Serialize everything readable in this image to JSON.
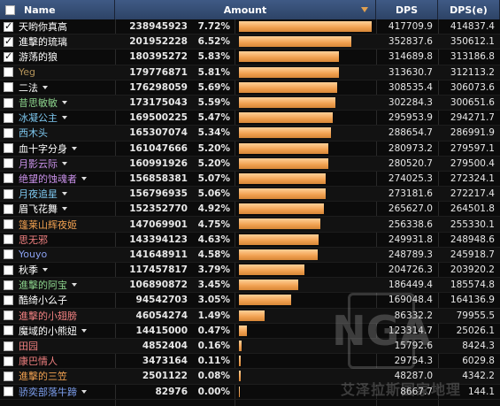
{
  "header": {
    "name_label": "Name",
    "amount_label": "Amount",
    "dps_label": "DPS",
    "dpse_label": "DPS(e)"
  },
  "max_amount": 238945923,
  "rows": [
    {
      "name": "天哟你真高",
      "color": "#ffffff",
      "checked": true,
      "caret": false,
      "amount": "238945923",
      "pct": "7.72%",
      "fraction": 1.0,
      "dps": "417709.9",
      "dpse": "414837.4"
    },
    {
      "name": "進擊的琉璃",
      "color": "#ffffff",
      "checked": true,
      "caret": false,
      "amount": "201952228",
      "pct": "6.52%",
      "fraction": 0.845,
      "dps": "352837.6",
      "dpse": "350612.1"
    },
    {
      "name": "游荡的狼",
      "color": "#ffffff",
      "checked": true,
      "caret": false,
      "amount": "180395272",
      "pct": "5.83%",
      "fraction": 0.755,
      "dps": "314689.8",
      "dpse": "313186.8"
    },
    {
      "name": "Yeg",
      "color": "#b5945a",
      "checked": false,
      "caret": false,
      "amount": "179776871",
      "pct": "5.81%",
      "fraction": 0.752,
      "dps": "313630.7",
      "dpse": "312113.2"
    },
    {
      "name": "二法",
      "color": "#ffffff",
      "checked": false,
      "caret": true,
      "amount": "176298059",
      "pct": "5.69%",
      "fraction": 0.738,
      "dps": "308535.4",
      "dpse": "306073.6"
    },
    {
      "name": "昔思敏敏",
      "color": "#8ad08a",
      "checked": false,
      "caret": true,
      "amount": "173175043",
      "pct": "5.59%",
      "fraction": 0.725,
      "dps": "302284.3",
      "dpse": "300651.6"
    },
    {
      "name": "冰凝公主",
      "color": "#7ec8f0",
      "checked": false,
      "caret": true,
      "amount": "169500225",
      "pct": "5.47%",
      "fraction": 0.709,
      "dps": "295953.9",
      "dpse": "294271.7"
    },
    {
      "name": "西木头",
      "color": "#7ec8f0",
      "checked": false,
      "caret": false,
      "amount": "165307074",
      "pct": "5.34%",
      "fraction": 0.692,
      "dps": "288654.7",
      "dpse": "286991.9"
    },
    {
      "name": "血十字分身",
      "color": "#ffffff",
      "checked": false,
      "caret": true,
      "amount": "161047666",
      "pct": "5.20%",
      "fraction": 0.674,
      "dps": "280973.2",
      "dpse": "279597.1"
    },
    {
      "name": "月影云际",
      "color": "#c890e8",
      "checked": false,
      "caret": true,
      "amount": "160991926",
      "pct": "5.20%",
      "fraction": 0.674,
      "dps": "280520.7",
      "dpse": "279500.4"
    },
    {
      "name": "绝望的蚀魂者",
      "color": "#c890e8",
      "checked": false,
      "caret": true,
      "amount": "156858381",
      "pct": "5.07%",
      "fraction": 0.656,
      "dps": "274025.3",
      "dpse": "272324.1"
    },
    {
      "name": "月夜追星",
      "color": "#7ec8f0",
      "checked": false,
      "caret": true,
      "amount": "156796935",
      "pct": "5.06%",
      "fraction": 0.656,
      "dps": "273181.6",
      "dpse": "272217.4"
    },
    {
      "name": "眉飞花舞",
      "color": "#ffffff",
      "checked": false,
      "caret": true,
      "amount": "152352770",
      "pct": "4.92%",
      "fraction": 0.638,
      "dps": "265627.0",
      "dpse": "264501.8"
    },
    {
      "name": "篷莱山辉夜姬",
      "color": "#f0a050",
      "checked": false,
      "caret": false,
      "amount": "147069901",
      "pct": "4.75%",
      "fraction": 0.615,
      "dps": "256338.6",
      "dpse": "255330.1"
    },
    {
      "name": "思无邪",
      "color": "#f08080",
      "checked": false,
      "caret": false,
      "amount": "143394123",
      "pct": "4.63%",
      "fraction": 0.6,
      "dps": "249931.8",
      "dpse": "248948.6"
    },
    {
      "name": "Youyo",
      "color": "#8aa0f0",
      "checked": false,
      "caret": false,
      "amount": "141648911",
      "pct": "4.58%",
      "fraction": 0.593,
      "dps": "248789.3",
      "dpse": "245918.7"
    },
    {
      "name": "秋季",
      "color": "#ffffff",
      "checked": false,
      "caret": true,
      "amount": "117457817",
      "pct": "3.79%",
      "fraction": 0.492,
      "dps": "204726.3",
      "dpse": "203920.2"
    },
    {
      "name": "進擊的阿宝",
      "color": "#8ad08a",
      "checked": false,
      "caret": true,
      "amount": "106890872",
      "pct": "3.45%",
      "fraction": 0.447,
      "dps": "186449.4",
      "dpse": "185574.8"
    },
    {
      "name": "酷绮小么子",
      "color": "#ffffff",
      "checked": false,
      "caret": false,
      "amount": "94542703",
      "pct": "3.05%",
      "fraction": 0.396,
      "dps": "169048.4",
      "dpse": "164136.9"
    },
    {
      "name": "進擊的小翅膀",
      "color": "#f08080",
      "checked": false,
      "caret": false,
      "amount": "46054274",
      "pct": "1.49%",
      "fraction": 0.193,
      "dps": "86332.2",
      "dpse": "79955.5"
    },
    {
      "name": "魔域的小熊妞",
      "color": "#ffffff",
      "checked": false,
      "caret": true,
      "amount": "14415000",
      "pct": "0.47%",
      "fraction": 0.06,
      "dps": "123314.7",
      "dpse": "25026.1"
    },
    {
      "name": "田园",
      "color": "#f08080",
      "checked": false,
      "caret": false,
      "amount": "4852404",
      "pct": "0.16%",
      "fraction": 0.02,
      "dps": "15792.6",
      "dpse": "8424.3"
    },
    {
      "name": "康巴情人",
      "color": "#f08080",
      "checked": false,
      "caret": false,
      "amount": "3473164",
      "pct": "0.11%",
      "fraction": 0.0145,
      "dps": "29754.3",
      "dpse": "6029.8"
    },
    {
      "name": "進擊的三笠",
      "color": "#f0a050",
      "checked": false,
      "caret": false,
      "amount": "2501122",
      "pct": "0.08%",
      "fraction": 0.0105,
      "dps": "48287.0",
      "dpse": "4342.2"
    },
    {
      "name": "骄奕部落牛蹄",
      "color": "#7ea0f0",
      "checked": false,
      "caret": true,
      "amount": "82976",
      "pct": "0.00%",
      "fraction": 0.0003,
      "dps": "8667.7",
      "dpse": "144.1"
    }
  ],
  "colors": {
    "bar": "#f0a050",
    "header": "#3f5a85"
  },
  "watermark": {
    "logo": "NGA",
    "text": "艾泽拉斯国家地理"
  }
}
